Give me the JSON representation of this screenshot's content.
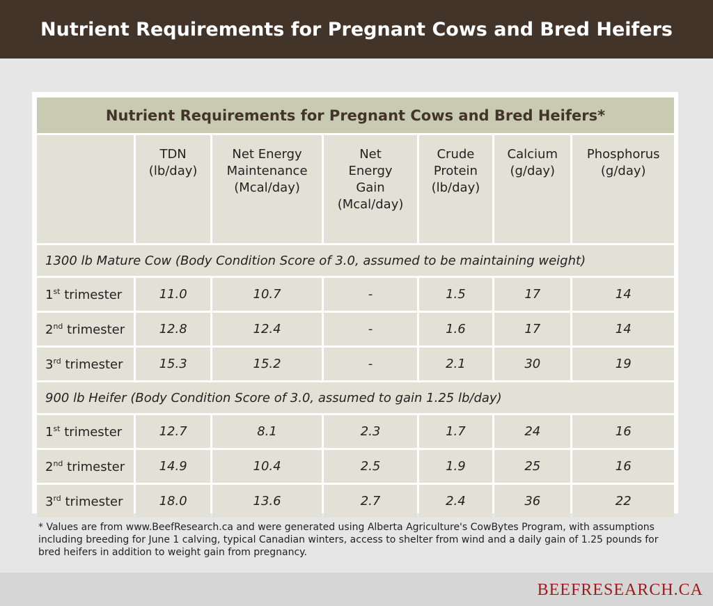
{
  "header": {
    "title": "Nutrient Requirements for Pregnant Cows and Bred Heifers"
  },
  "table": {
    "title": "Nutrient Requirements for Pregnant Cows and Bred Heifers*",
    "columns": [
      [
        "TDN",
        "(lb/day)"
      ],
      [
        "Net Energy",
        "Maintenance",
        "(Mcal/day)"
      ],
      [
        "Net",
        "Energy",
        "Gain",
        "(Mcal/day)"
      ],
      [
        "Crude",
        "Protein",
        "(lb/day)"
      ],
      [
        "Calcium",
        "(g/day)"
      ],
      [
        "Phosphorus",
        "(g/day)"
      ]
    ],
    "groups": [
      {
        "label": "1300 lb Mature Cow (Body Condition Score of 3.0, assumed to be maintaining weight)",
        "rows": [
          {
            "ordinal": "1",
            "suffix": "st",
            "label": "trimester",
            "values": [
              "11.0",
              "10.7",
              "-",
              "1.5",
              "17",
              "14"
            ]
          },
          {
            "ordinal": "2",
            "suffix": "nd",
            "label": "trimester",
            "values": [
              "12.8",
              "12.4",
              "-",
              "1.6",
              "17",
              "14"
            ]
          },
          {
            "ordinal": "3",
            "suffix": "rd",
            "label": "trimester",
            "values": [
              "15.3",
              "15.2",
              "-",
              "2.1",
              "30",
              "19"
            ]
          }
        ]
      },
      {
        "label": "900 lb Heifer (Body Condition Score of 3.0, assumed to gain 1.25 lb/day)",
        "rows": [
          {
            "ordinal": "1",
            "suffix": "st",
            "label": "trimester",
            "values": [
              "12.7",
              "8.1",
              "2.3",
              "1.7",
              "24",
              "16"
            ]
          },
          {
            "ordinal": "2",
            "suffix": "nd",
            "label": "trimester",
            "values": [
              "14.9",
              "10.4",
              "2.5",
              "1.9",
              "25",
              "16"
            ]
          },
          {
            "ordinal": "3",
            "suffix": "rd",
            "label": "trimester",
            "values": [
              "18.0",
              "13.6",
              "2.7",
              "2.4",
              "36",
              "22"
            ]
          }
        ]
      }
    ]
  },
  "footnote": "* Values are from www.BeefResearch.ca and were generated using Alberta Agriculture's CowBytes Program, with assumptions including breeding for June 1 calving, typical Canadian winters, access to shelter from wind and a daily gain of 1.25 pounds for bred heifers in addition to weight gain from pregnancy.",
  "brand": "BEEFRESEARCH.CA"
}
